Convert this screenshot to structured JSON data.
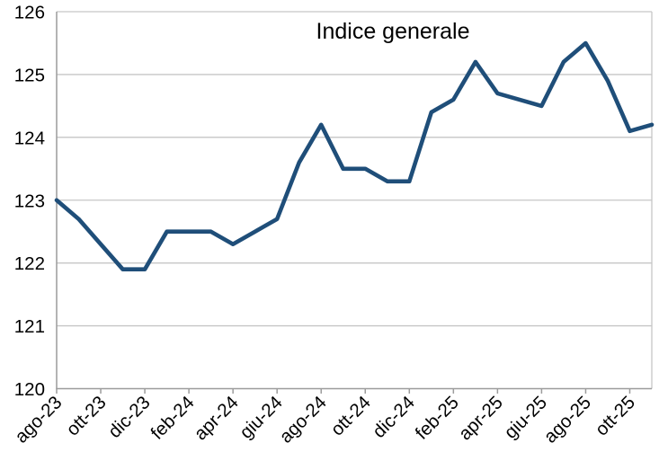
{
  "chart_data": {
    "type": "line",
    "title": "Indice generale",
    "xlabel": "",
    "ylabel": "",
    "x": [
      "ago-23",
      "set-23",
      "ott-23",
      "nov-23",
      "dic-23",
      "gen-24",
      "feb-24",
      "mar-24",
      "apr-24",
      "mag-24",
      "giu-24",
      "lug-24",
      "ago-24",
      "set-24",
      "ott-24",
      "nov-24",
      "dic-24",
      "gen-25",
      "feb-25",
      "mar-25",
      "apr-25",
      "mag-25",
      "giu-25",
      "lug-25",
      "ago-25",
      "set-25",
      "ott-25",
      "nov-25"
    ],
    "values": [
      123.0,
      122.7,
      122.3,
      121.9,
      121.9,
      122.5,
      122.5,
      122.5,
      122.3,
      122.5,
      122.7,
      123.6,
      124.2,
      123.5,
      123.5,
      123.3,
      123.3,
      124.4,
      124.6,
      125.2,
      124.7,
      124.6,
      124.5,
      125.2,
      125.5,
      124.9,
      124.1,
      124.2
    ],
    "x_tick_labels": [
      "ago-23",
      "ott-23",
      "dic-23",
      "feb-24",
      "apr-24",
      "giu-24",
      "ago-24",
      "ott-24",
      "dic-24",
      "feb-25",
      "apr-25",
      "giu-25",
      "ago-25",
      "ott-25"
    ],
    "y_ticks": [
      "120",
      "121",
      "122",
      "123",
      "124",
      "125",
      "126"
    ],
    "ylim": [
      120,
      126
    ],
    "grid": true,
    "legend": false,
    "line_color": "#1F4E79",
    "grid_color": "#C6C6C6",
    "axis_color": "#9C9C9C",
    "label_color": "#000000"
  }
}
